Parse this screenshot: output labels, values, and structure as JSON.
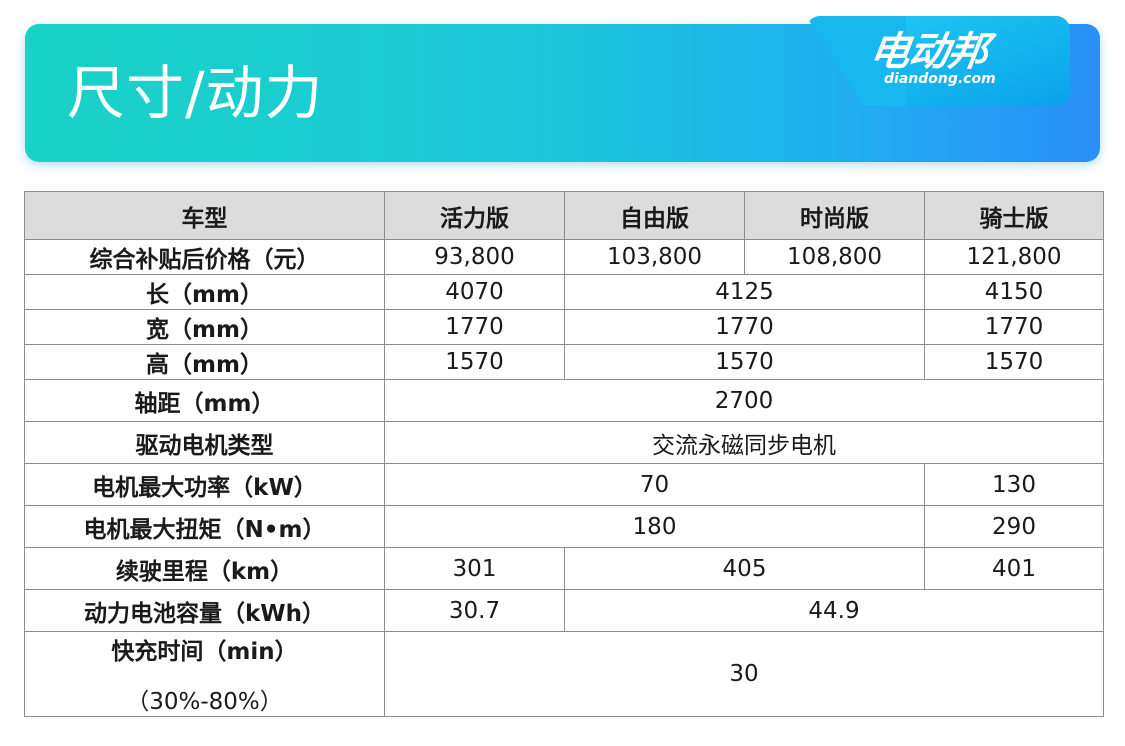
{
  "banner": {
    "title": "尺寸/动力",
    "logo_main": "电动邦",
    "logo_sub": "diandong.com"
  },
  "table": {
    "header": [
      "车型",
      "活力版",
      "自由版",
      "时尚版",
      "骑士版"
    ],
    "price": {
      "label": "综合补贴后价格（元）",
      "v1": "93,800",
      "v2": "103,800",
      "v3": "108,800",
      "v4": "121,800"
    },
    "length": {
      "label": "长（mm）",
      "v1": "4070",
      "v23": "4125",
      "v4": "4150"
    },
    "width": {
      "label": "宽（mm）",
      "v1": "1770",
      "v23": "1770",
      "v4": "1770"
    },
    "height": {
      "label": "高（mm）",
      "v1": "1570",
      "v23": "1570",
      "v4": "1570"
    },
    "wheelbase": {
      "label": "轴距（mm）",
      "value": "2700"
    },
    "motor_type": {
      "label": "驱动电机类型",
      "value": "交流永磁同步电机"
    },
    "max_power": {
      "label": "电机最大功率（kW）",
      "v123": "70",
      "v4": "130"
    },
    "max_torque": {
      "label": "电机最大扭矩（N•m）",
      "v123": "180",
      "v4": "290"
    },
    "range": {
      "label": "续驶里程（km）",
      "v1": "301",
      "v23": "405",
      "v4": "401"
    },
    "battery": {
      "label": "动力电池容量（kWh）",
      "v1": "30.7",
      "v234": "44.9"
    },
    "fast_charge": {
      "label": "快充时间（min）",
      "sub_label": "（30%-80%）",
      "value": "30"
    }
  }
}
